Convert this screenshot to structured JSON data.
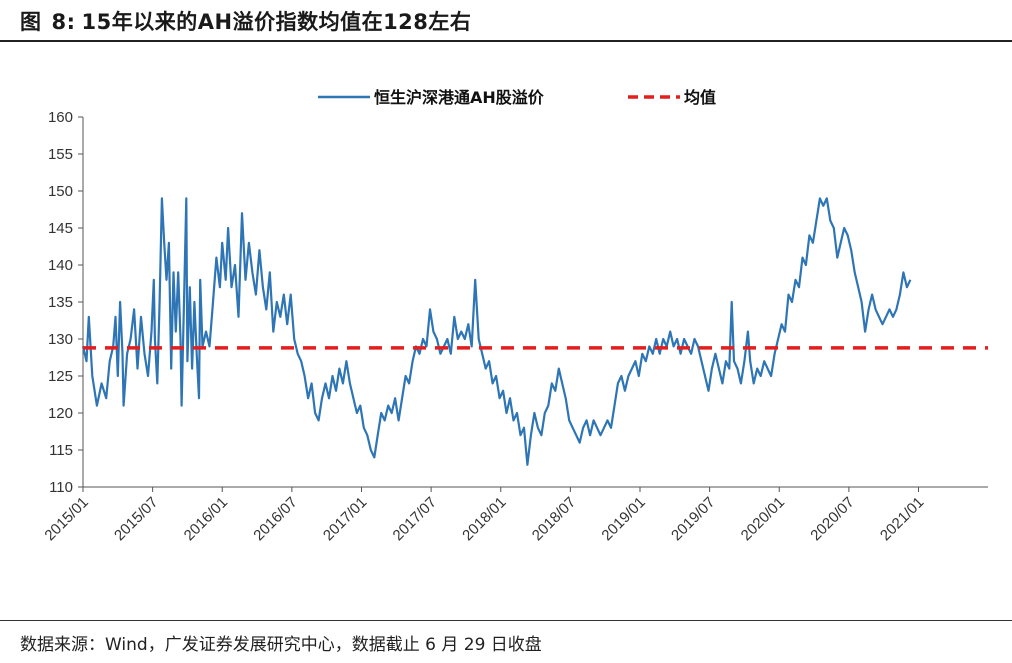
{
  "figure": {
    "label": "图",
    "number": "8:",
    "title": "15年以来的AH溢价指数均值在128左右"
  },
  "source_text": "数据来源：Wind，广发证券发展研究中心，数据截止 6 月 29 日收盘",
  "colors": {
    "series": "#2E75B6",
    "mean": "#E41E1E",
    "axis": "#555555"
  },
  "chart_data": {
    "type": "line",
    "title": "15年以来的AH溢价指数均值在128左右",
    "ylim": [
      110,
      160
    ],
    "yticks": [
      110,
      115,
      120,
      125,
      130,
      135,
      140,
      145,
      150,
      155,
      160
    ],
    "xlim": [
      "2015/01",
      "2021/06"
    ],
    "xticks": [
      "2015/01",
      "2015/07",
      "2016/01",
      "2016/07",
      "2017/01",
      "2017/07",
      "2018/01",
      "2018/07",
      "2019/01",
      "2019/07",
      "2020/01",
      "2020/07",
      "2021/01"
    ],
    "legend": {
      "position": "top-right"
    },
    "series": [
      {
        "name": "恒生沪深港通AH股溢价",
        "style": "solid",
        "x_unit": "months since 2015/01",
        "points": [
          [
            0,
            129
          ],
          [
            0.3,
            127
          ],
          [
            0.5,
            133
          ],
          [
            0.8,
            125
          ],
          [
            1.2,
            121
          ],
          [
            1.6,
            124
          ],
          [
            2.0,
            122
          ],
          [
            2.3,
            127
          ],
          [
            2.6,
            129
          ],
          [
            2.8,
            133
          ],
          [
            3.0,
            125
          ],
          [
            3.2,
            135
          ],
          [
            3.4,
            128
          ],
          [
            3.5,
            121
          ],
          [
            3.8,
            128
          ],
          [
            4.1,
            130
          ],
          [
            4.4,
            134
          ],
          [
            4.7,
            126
          ],
          [
            5.0,
            133
          ],
          [
            5.3,
            128
          ],
          [
            5.6,
            125
          ],
          [
            5.9,
            131
          ],
          [
            6.1,
            138
          ],
          [
            6.2,
            130
          ],
          [
            6.4,
            124
          ],
          [
            6.6,
            135
          ],
          [
            6.8,
            149
          ],
          [
            7.0,
            143
          ],
          [
            7.2,
            138
          ],
          [
            7.4,
            143
          ],
          [
            7.6,
            126
          ],
          [
            7.8,
            139
          ],
          [
            8.0,
            131
          ],
          [
            8.2,
            139
          ],
          [
            8.4,
            130
          ],
          [
            8.5,
            121
          ],
          [
            8.7,
            135
          ],
          [
            8.9,
            149
          ],
          [
            9.0,
            127
          ],
          [
            9.2,
            137
          ],
          [
            9.4,
            126
          ],
          [
            9.6,
            135
          ],
          [
            9.8,
            128
          ],
          [
            10.0,
            122
          ],
          [
            10.1,
            138
          ],
          [
            10.3,
            129
          ],
          [
            10.6,
            131
          ],
          [
            10.9,
            129
          ],
          [
            11.2,
            135
          ],
          [
            11.5,
            141
          ],
          [
            11.8,
            137
          ],
          [
            12.0,
            143
          ],
          [
            12.3,
            138
          ],
          [
            12.5,
            145
          ],
          [
            12.8,
            137
          ],
          [
            13.1,
            140
          ],
          [
            13.4,
            133
          ],
          [
            13.7,
            147
          ],
          [
            14.0,
            138
          ],
          [
            14.3,
            143
          ],
          [
            14.6,
            139
          ],
          [
            14.9,
            136
          ],
          [
            15.2,
            142
          ],
          [
            15.5,
            137
          ],
          [
            15.8,
            134
          ],
          [
            16.1,
            139
          ],
          [
            16.4,
            131
          ],
          [
            16.7,
            135
          ],
          [
            17.0,
            133
          ],
          [
            17.3,
            136
          ],
          [
            17.6,
            132
          ],
          [
            17.9,
            136
          ],
          [
            18.2,
            130
          ],
          [
            18.5,
            128
          ],
          [
            18.8,
            127
          ],
          [
            19.1,
            125
          ],
          [
            19.4,
            122
          ],
          [
            19.7,
            124
          ],
          [
            20.0,
            120
          ],
          [
            20.3,
            119
          ],
          [
            20.6,
            122
          ],
          [
            20.9,
            124
          ],
          [
            21.2,
            122
          ],
          [
            21.5,
            125
          ],
          [
            21.8,
            123
          ],
          [
            22.1,
            126
          ],
          [
            22.4,
            124
          ],
          [
            22.7,
            127
          ],
          [
            23.0,
            124
          ],
          [
            23.3,
            122
          ],
          [
            23.6,
            120
          ],
          [
            23.9,
            121
          ],
          [
            24.2,
            118
          ],
          [
            24.5,
            117
          ],
          [
            24.8,
            115
          ],
          [
            25.1,
            114
          ],
          [
            25.4,
            117
          ],
          [
            25.7,
            120
          ],
          [
            26.0,
            119
          ],
          [
            26.3,
            121
          ],
          [
            26.6,
            120
          ],
          [
            26.9,
            122
          ],
          [
            27.2,
            119
          ],
          [
            27.5,
            122
          ],
          [
            27.8,
            125
          ],
          [
            28.1,
            124
          ],
          [
            28.4,
            127
          ],
          [
            28.7,
            129
          ],
          [
            29.0,
            128
          ],
          [
            29.3,
            130
          ],
          [
            29.6,
            129
          ],
          [
            29.9,
            134
          ],
          [
            30.2,
            131
          ],
          [
            30.5,
            130
          ],
          [
            30.8,
            128
          ],
          [
            31.1,
            129
          ],
          [
            31.4,
            130
          ],
          [
            31.7,
            128
          ],
          [
            32.0,
            133
          ],
          [
            32.3,
            130
          ],
          [
            32.6,
            131
          ],
          [
            32.9,
            130
          ],
          [
            33.2,
            132
          ],
          [
            33.5,
            129
          ],
          [
            33.8,
            138
          ],
          [
            34.1,
            130
          ],
          [
            34.4,
            128
          ],
          [
            34.7,
            126
          ],
          [
            35.0,
            127
          ],
          [
            35.3,
            124
          ],
          [
            35.6,
            125
          ],
          [
            35.9,
            122
          ],
          [
            36.2,
            123
          ],
          [
            36.5,
            120
          ],
          [
            36.8,
            122
          ],
          [
            37.1,
            119
          ],
          [
            37.4,
            120
          ],
          [
            37.7,
            117
          ],
          [
            38.0,
            118
          ],
          [
            38.3,
            113
          ],
          [
            38.6,
            117
          ],
          [
            38.9,
            120
          ],
          [
            39.2,
            118
          ],
          [
            39.5,
            117
          ],
          [
            39.8,
            120
          ],
          [
            40.1,
            121
          ],
          [
            40.4,
            124
          ],
          [
            40.7,
            123
          ],
          [
            41.0,
            126
          ],
          [
            41.3,
            124
          ],
          [
            41.6,
            122
          ],
          [
            41.9,
            119
          ],
          [
            42.2,
            118
          ],
          [
            42.5,
            117
          ],
          [
            42.8,
            116
          ],
          [
            43.1,
            118
          ],
          [
            43.4,
            119
          ],
          [
            43.7,
            117
          ],
          [
            44.0,
            119
          ],
          [
            44.3,
            118
          ],
          [
            44.6,
            117
          ],
          [
            44.9,
            118
          ],
          [
            45.2,
            119
          ],
          [
            45.5,
            118
          ],
          [
            45.8,
            121
          ],
          [
            46.1,
            124
          ],
          [
            46.4,
            125
          ],
          [
            46.7,
            123
          ],
          [
            47.0,
            125
          ],
          [
            47.3,
            126
          ],
          [
            47.6,
            127
          ],
          [
            47.9,
            125
          ],
          [
            48.2,
            128
          ],
          [
            48.5,
            127
          ],
          [
            48.8,
            129
          ],
          [
            49.1,
            128
          ],
          [
            49.4,
            130
          ],
          [
            49.7,
            128
          ],
          [
            50.0,
            130
          ],
          [
            50.3,
            129
          ],
          [
            50.6,
            131
          ],
          [
            50.9,
            129
          ],
          [
            51.2,
            130
          ],
          [
            51.5,
            128
          ],
          [
            51.8,
            130
          ],
          [
            52.1,
            129
          ],
          [
            52.4,
            128
          ],
          [
            52.7,
            130
          ],
          [
            53.0,
            129
          ],
          [
            53.3,
            127
          ],
          [
            53.6,
            125
          ],
          [
            53.9,
            123
          ],
          [
            54.2,
            126
          ],
          [
            54.5,
            128
          ],
          [
            54.8,
            126
          ],
          [
            55.1,
            124
          ],
          [
            55.4,
            127
          ],
          [
            55.7,
            126
          ],
          [
            55.9,
            135
          ],
          [
            56.1,
            127
          ],
          [
            56.4,
            126
          ],
          [
            56.7,
            124
          ],
          [
            57.0,
            127
          ],
          [
            57.3,
            131
          ],
          [
            57.5,
            127
          ],
          [
            57.8,
            124
          ],
          [
            58.1,
            126
          ],
          [
            58.4,
            125
          ],
          [
            58.7,
            127
          ],
          [
            59.0,
            126
          ],
          [
            59.3,
            125
          ],
          [
            59.6,
            128
          ],
          [
            59.9,
            130
          ],
          [
            60.2,
            132
          ],
          [
            60.5,
            131
          ],
          [
            60.8,
            136
          ],
          [
            61.1,
            135
          ],
          [
            61.4,
            138
          ],
          [
            61.7,
            137
          ],
          [
            62.0,
            141
          ],
          [
            62.3,
            140
          ],
          [
            62.6,
            144
          ],
          [
            62.9,
            143
          ],
          [
            63.2,
            146
          ],
          [
            63.5,
            149
          ],
          [
            63.8,
            148
          ],
          [
            64.1,
            149
          ],
          [
            64.4,
            146
          ],
          [
            64.7,
            145
          ],
          [
            65.0,
            141
          ],
          [
            65.3,
            143
          ],
          [
            65.6,
            145
          ],
          [
            65.9,
            144
          ],
          [
            66.2,
            142
          ],
          [
            66.5,
            139
          ],
          [
            66.8,
            137
          ],
          [
            67.1,
            135
          ],
          [
            67.4,
            131
          ],
          [
            67.7,
            134
          ],
          [
            68.0,
            136
          ],
          [
            68.3,
            134
          ],
          [
            68.6,
            133
          ],
          [
            68.9,
            132
          ],
          [
            69.2,
            133
          ],
          [
            69.5,
            134
          ],
          [
            69.8,
            133
          ],
          [
            70.1,
            134
          ],
          [
            70.4,
            136
          ],
          [
            70.7,
            139
          ],
          [
            71.0,
            137
          ],
          [
            71.3,
            138
          ]
        ]
      },
      {
        "name": "均值",
        "style": "dashed",
        "value": 128.8
      }
    ]
  }
}
